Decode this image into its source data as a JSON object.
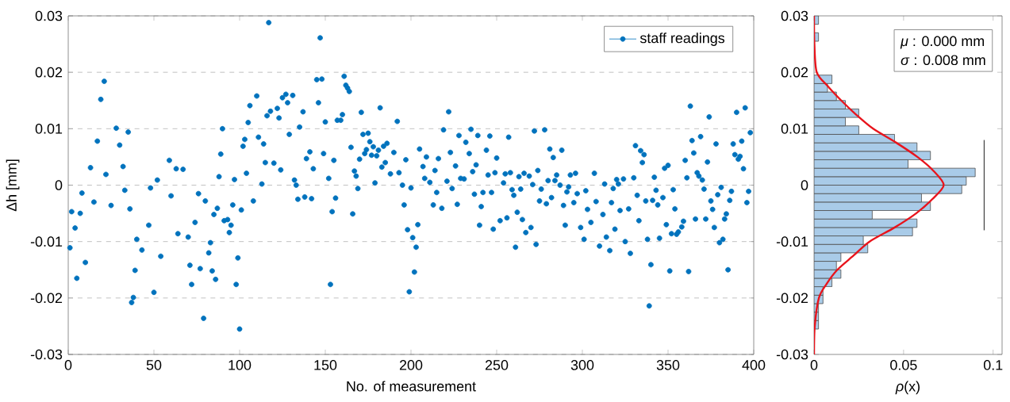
{
  "chart_data": [
    {
      "type": "scatter",
      "xlabel": "No. of measurement",
      "ylabel": "Δh [mm]",
      "xlim": [
        0,
        400
      ],
      "ylim": [
        -0.03,
        0.03
      ],
      "xticks": [
        0,
        50,
        100,
        150,
        200,
        250,
        300,
        350,
        400
      ],
      "yticks": [
        -0.03,
        -0.02,
        -0.01,
        0,
        0.01,
        0.02,
        0.03
      ],
      "grid": "y",
      "legend": "top right",
      "marker": "circle",
      "series": [
        {
          "name": "staff readings",
          "color": "#0072bd",
          "x": [
            1,
            2,
            4,
            5,
            7,
            8,
            10,
            13,
            15,
            17,
            19,
            21,
            22,
            25,
            28,
            30,
            32,
            33,
            35,
            36,
            37,
            38,
            39,
            40,
            43,
            47,
            48,
            50,
            52,
            54,
            59,
            60,
            63,
            64,
            67,
            70,
            71,
            72,
            74,
            76,
            77,
            79,
            80,
            82,
            83,
            84,
            85,
            86,
            87,
            88,
            89,
            90,
            91,
            93,
            94,
            95,
            96,
            97,
            98,
            99,
            100,
            101,
            102,
            103,
            104,
            105,
            106,
            108,
            110,
            111,
            113,
            114,
            115,
            116,
            117,
            118,
            120,
            122,
            123,
            124,
            125,
            127,
            128,
            129,
            131,
            132,
            133,
            134,
            135,
            137,
            138,
            139,
            141,
            142,
            143,
            145,
            146,
            147,
            148,
            149,
            150,
            152,
            153,
            154,
            155,
            156,
            157,
            159,
            160,
            161,
            162,
            163,
            164,
            165,
            166,
            167,
            168,
            169,
            170,
            171,
            172,
            173,
            174,
            175,
            176,
            177,
            178,
            179,
            180,
            181,
            182,
            183,
            184,
            185,
            186,
            188,
            190,
            192,
            193,
            195,
            196,
            197,
            198,
            199,
            200,
            201,
            202,
            203,
            204,
            205,
            207,
            208,
            209,
            211,
            213,
            214,
            215,
            216,
            218,
            219,
            221,
            222,
            223,
            224,
            226,
            227,
            228,
            229,
            231,
            232,
            234,
            235,
            236,
            237,
            238,
            239,
            240,
            241,
            242,
            244,
            245,
            246,
            247,
            248,
            249,
            250,
            252,
            254,
            255,
            256,
            257,
            258,
            259,
            260,
            261,
            262,
            263,
            264,
            265,
            266,
            267,
            269,
            270,
            271,
            272,
            273,
            274,
            275,
            276,
            278,
            279,
            280,
            281,
            282,
            283,
            284,
            285,
            287,
            288,
            289,
            290,
            291,
            292,
            293,
            295,
            296,
            297,
            299,
            301,
            302,
            303,
            305,
            307,
            308,
            310,
            312,
            313,
            314,
            316,
            317,
            318,
            319,
            320,
            321,
            322,
            324,
            325,
            327,
            328,
            330,
            331,
            332,
            333,
            334,
            335,
            336,
            337,
            338,
            339,
            340,
            341,
            342,
            343,
            344,
            345,
            347,
            348,
            349,
            350,
            351,
            352,
            353,
            354,
            355,
            356,
            358,
            359,
            360,
            361,
            362,
            363,
            364,
            365,
            366,
            367,
            368,
            369,
            370,
            371,
            372,
            373,
            374,
            375,
            376,
            377,
            378,
            379,
            380,
            381,
            382,
            383,
            384,
            385,
            386,
            387,
            388,
            389,
            390,
            391,
            392,
            393,
            394,
            395,
            396,
            397,
            398
          ],
          "values": [
            -0.0111,
            -0.0047,
            -0.0076,
            -0.0165,
            -0.005,
            -0.0014,
            -0.0137,
            0.0031,
            -0.003,
            0.0078,
            0.0152,
            0.0184,
            0.0019,
            -0.0036,
            0.0101,
            0.0071,
            0.0033,
            -0.0009,
            0.0094,
            -0.0042,
            -0.0208,
            -0.0199,
            -0.0151,
            -0.0096,
            -0.0115,
            -0.0071,
            -0.0005,
            -0.019,
            0.0009,
            -0.0126,
            0.0044,
            -0.0019,
            0.0029,
            -0.0086,
            0.0028,
            -0.0092,
            -0.0142,
            -0.0176,
            -0.0066,
            -0.0015,
            -0.0148,
            -0.0236,
            -0.0028,
            -0.012,
            -0.0102,
            -0.0152,
            -0.0052,
            -0.0167,
            -0.0041,
            0.0015,
            0.0055,
            0.01,
            -0.0063,
            -0.0061,
            -0.0084,
            -0.0071,
            -0.0035,
            0.001,
            -0.0176,
            -0.0129,
            -0.0255,
            -0.0044,
            0.0069,
            0.0081,
            0.0021,
            0.0111,
            0.0141,
            -0.0028,
            0.0158,
            0.0085,
            0.0002,
            0.0073,
            0.004,
            0.0123,
            0.0288,
            0.0131,
            0.0039,
            0.0136,
            0.0119,
            0.0027,
            0.0155,
            0.0161,
            0.0146,
            0.009,
            0.0159,
            0.0009,
            0,
            -0.0025,
            0.0103,
            0.013,
            -0.0021,
            0.0047,
            0.0059,
            -0.0024,
            0.0029,
            0.0187,
            0.0146,
            0.0261,
            0.0188,
            0.0056,
            0.0112,
            0.0012,
            -0.0176,
            -0.0047,
            0.0044,
            -0.0023,
            0.0115,
            0.0115,
            0.0125,
            0.0193,
            0.0177,
            0.0172,
            0.0166,
            0.0067,
            -0.0051,
            0.0025,
            0.0016,
            -0.0006,
            0.0046,
            0.0129,
            0.009,
            0.0056,
            0.0063,
            0.0092,
            0.0077,
            0.0053,
            0.0068,
            0.0004,
            0.0052,
            0.0062,
            0.0137,
            0.0032,
            0.0069,
            0.004,
            0.0074,
            0.002,
            0.0058,
            0.0113,
            0.0022,
            0,
            -0.0035,
            0.0045,
            -0.0079,
            -0.0189,
            -0.0005,
            -0.0093,
            -0.0154,
            -0.011,
            -0.007,
            0.0064,
            0.0033,
            0.0012,
            0.005,
            0.0005,
            -0.0035,
            0.0026,
            -0.0013,
            0.0047,
            -0.0041,
            0.0098,
            0.0007,
            0.013,
            0.0058,
            -0.0006,
            0.0034,
            -0.0034,
            0.0088,
            0.0012,
            0.0011,
            0.0076,
            0.0056,
            0.0099,
            0.0024,
            -0.0016,
            0.0036,
            0.0088,
            -0.0071,
            -0.0038,
            -0.0013,
            0.0062,
            0.0018,
            0.0087,
            -0.0013,
            -0.0078,
            0.0022,
            0.0048,
            -0.0063,
            0.0004,
            0.002,
            -0.0058,
            0.0085,
            0.0022,
            -0.0008,
            -0.0018,
            -0.011,
            -0.0048,
            0.0015,
            -0.0007,
            -0.0061,
            0.0021,
            -0.0084,
            0.0016,
            -0.0075,
            0.0001,
            0.0096,
            -0.0105,
            0.0026,
            -0.0028,
            -0.0007,
            0.0098,
            -0.0033,
            0.0008,
            0.0064,
            -0.0022,
            0.0049,
            0.0008,
            0.0018,
            0,
            0.0062,
            -0.0036,
            -0.0071,
            -0.0012,
            -0.0003,
            0.0018,
            -0.0031,
            0.0021,
            -0.0015,
            -0.0075,
            -0.0096,
            -0.001,
            -0.0043,
            -0.0066,
            0.0021,
            -0.0029,
            -0.0108,
            -0.0052,
            0.0002,
            -0.0092,
            -0.0116,
            -0.0031,
            -0.0006,
            -0.0078,
            0.001,
            0.0002,
            -0.0045,
            0.0011,
            -0.01,
            -0.0042,
            -0.0121,
            0.0013,
            0.007,
            -0.0018,
            -0.0063,
            0.0061,
            0.004,
            0.0054,
            -0.0028,
            -0.0096,
            -0.0214,
            -0.0141,
            -0.0027,
            0.0014,
            -0.0009,
            -0.0035,
            -0.0094,
            -0.0022,
            0.003,
            -0.007,
            0.0035,
            -0.0152,
            -0.0086,
            -0.0008,
            -0.0042,
            -0.0087,
            -0.0083,
            -0.0074,
            -0.0064,
            0.0044,
            0.0013,
            -0.0153,
            0.014,
            0.0079,
            0.0057,
            -0.006,
            0.0022,
            0.0016,
            0.0086,
            0.0009,
            -0.0007,
            -0.006,
            0.0041,
            0.0121,
            -0.0028,
            -0.0043,
            -0.0075,
            0.0073,
            -0.0017,
            -0.0102,
            -0.0004,
            -0.0096,
            -0.006,
            -0.0051,
            -0.015,
            -0.0027,
            -0.0011,
            0.0073,
            0.0054,
            0.0129,
            0.0046,
            0.0051,
            0.0078,
            0.0029,
            0.0137,
            -0.0031,
            -0.0011,
            0.0093
          ]
        }
      ]
    },
    {
      "type": "histogram",
      "orientation": "horizontal",
      "xlabel": "*ρ*(x)",
      "xlim": [
        0,
        0.105
      ],
      "ylim": [
        -0.03,
        0.03
      ],
      "xticks": [
        0,
        0.05,
        0.1
      ],
      "yticks": [
        -0.03,
        -0.02,
        -0.01,
        0,
        0.01,
        0.02,
        0.03
      ],
      "color": "#a9cbe8",
      "bins": [
        -0.0255,
        -0.024,
        -0.0225,
        -0.021,
        -0.0195,
        -0.018,
        -0.0165,
        -0.015,
        -0.0135,
        -0.012,
        -0.0105,
        -0.009,
        -0.0075,
        -0.006,
        -0.0045,
        -0.003,
        -0.0015,
        0,
        0.0015,
        0.003,
        0.0045,
        0.006,
        0.0075,
        0.009,
        0.0105,
        0.012,
        0.0135,
        0.015,
        0.0165,
        0.018,
        0.0195,
        0.021,
        0.0225,
        0.024,
        0.0255,
        0.027,
        0.0285,
        0.03
      ],
      "values": [
        0.0025,
        0.0025,
        0.0025,
        0.005,
        0.005,
        0.01,
        0.015,
        0.0125,
        0.015,
        0.03,
        0.0275,
        0.055,
        0.0575,
        0.0325,
        0.065,
        0.06,
        0.0825,
        0.085,
        0.09,
        0.0525,
        0.065,
        0.0575,
        0.045,
        0.025,
        0.0175,
        0.025,
        0.0175,
        0.0125,
        0.0075,
        0.01,
        0,
        0,
        0,
        0,
        0.0025,
        0,
        0.0025
      ],
      "annotations": [
        "*μ* : 0.000 mm",
        "*σ* : 0.008 mm"
      ],
      "series": [
        {
          "type": "line",
          "color": "#e8141c",
          "x": [
            -0.03,
            -0.025,
            -0.02,
            -0.0175,
            -0.015,
            -0.0125,
            -0.01,
            -0.0075,
            -0.005,
            -0.0025,
            0,
            0.0025,
            0.005,
            0.0075,
            0.01,
            0.0125,
            0.015,
            0.0175,
            0.02,
            0.025,
            0.03
          ],
          "values": [
            0,
            0.0004,
            0.0027,
            0.007,
            0.013,
            0.022,
            0.031,
            0.045,
            0.057,
            0.066,
            0.0724,
            0.0668,
            0.0577,
            0.046,
            0.033,
            0.0235,
            0.0152,
            0.0078,
            0.0015,
            0.0002,
            0
          ]
        },
        {
          "type": "line",
          "line_style": "solid",
          "color": "#404040",
          "x": [
            -0.008,
            0.008
          ],
          "values": [
            0.095,
            0.095
          ]
        }
      ]
    }
  ]
}
